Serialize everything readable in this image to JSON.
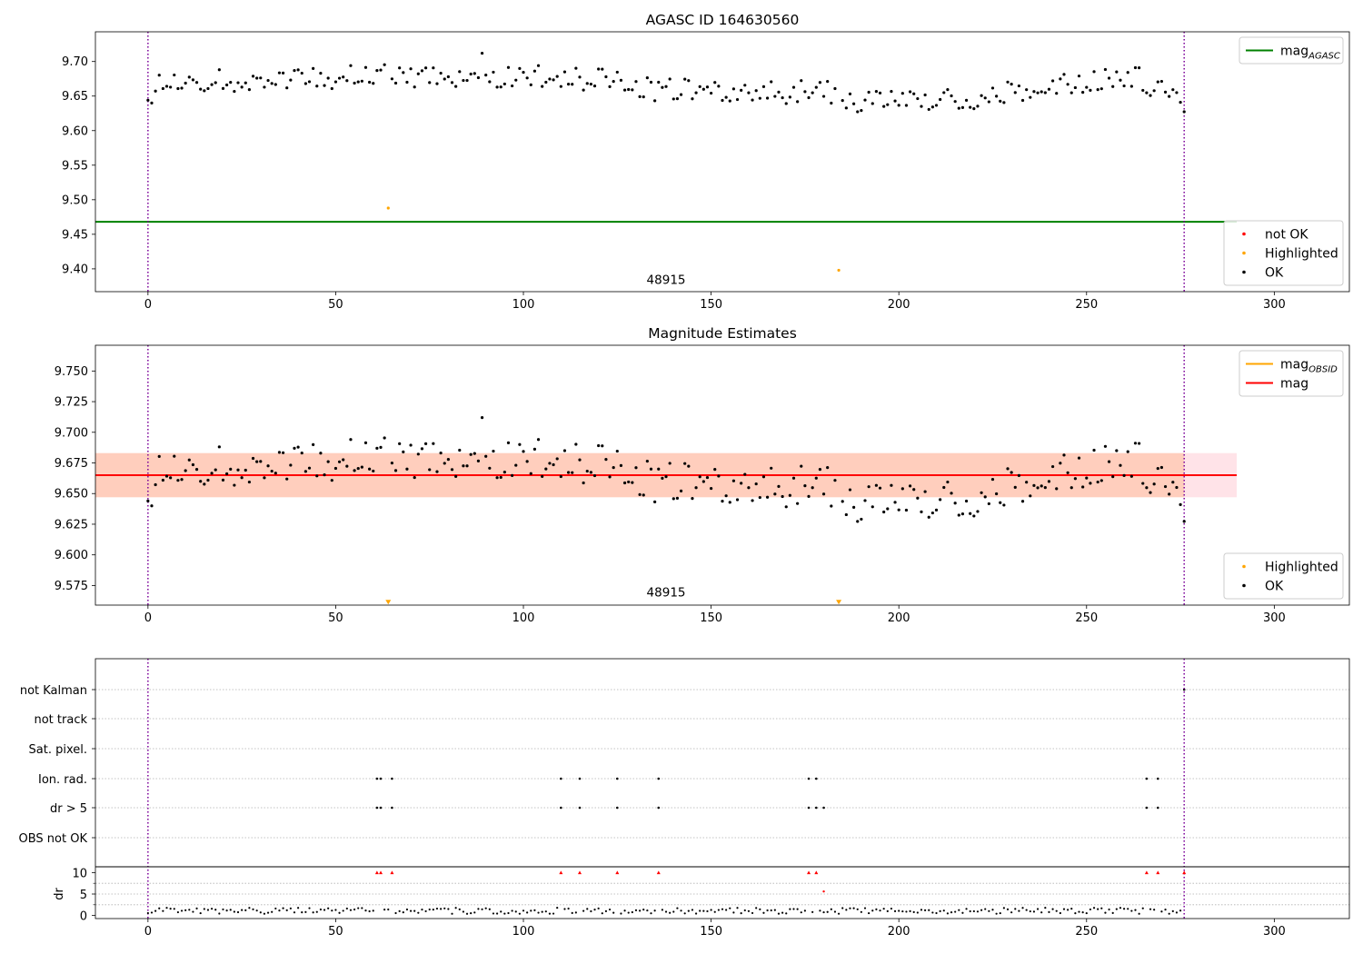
{
  "figure": {
    "background": "#ffffff"
  },
  "chart_data": [
    {
      "type": "scatter",
      "title": "AGASC ID 164630560",
      "xlim": [
        -14,
        320
      ],
      "ylim": [
        9.367,
        9.743
      ],
      "x_ticks": [
        0,
        50,
        100,
        150,
        200,
        250,
        300
      ],
      "y_ticks": [
        9.4,
        9.45,
        9.5,
        9.55,
        9.6,
        9.65,
        9.7
      ],
      "y_tick_decimals": 2,
      "vlines": [
        0,
        276
      ],
      "vline_color": "#7b0099",
      "annotation": {
        "text": "48915",
        "x": 138,
        "y": 9.378
      },
      "hlines": [
        {
          "name": "mag_AGASC",
          "y": 9.468,
          "x0": -14,
          "x1": 290,
          "color": "#008000"
        }
      ],
      "series": [
        {
          "name": "OK",
          "color": "#000000",
          "source": "ok_points"
        },
        {
          "name": "Highlighted",
          "color": "#ffa500",
          "points": [
            [
              64,
              9.488
            ],
            [
              184,
              9.398
            ]
          ]
        },
        {
          "name": "not OK",
          "color": "#ff0000",
          "points": []
        }
      ],
      "legends": [
        {
          "position": "top-right",
          "entries": [
            {
              "label": "mag",
              "sub": "AGASC",
              "kind": "line",
              "color": "#008000"
            }
          ]
        },
        {
          "position": "bottom-right",
          "entries": [
            {
              "label": "not OK",
              "kind": "dot",
              "color": "#ff0000"
            },
            {
              "label": "Highlighted",
              "kind": "dot",
              "color": "#ffa500"
            },
            {
              "label": "OK",
              "kind": "dot",
              "color": "#000000"
            }
          ]
        }
      ]
    },
    {
      "type": "scatter",
      "title": "Magnitude Estimates",
      "xlim": [
        -14,
        320
      ],
      "ylim": [
        9.559,
        9.771
      ],
      "x_ticks": [
        0,
        50,
        100,
        150,
        200,
        250,
        300
      ],
      "y_ticks": [
        9.575,
        9.6,
        9.625,
        9.65,
        9.675,
        9.7,
        9.725,
        9.75
      ],
      "y_tick_decimals": 3,
      "vlines": [
        0,
        276
      ],
      "vline_color": "#7b0099",
      "annotation": {
        "text": "48915",
        "x": 138,
        "y": 9.566
      },
      "bands": [
        {
          "y0": 9.647,
          "y1": 9.683,
          "x0": -14,
          "x1": 290,
          "color": "#ffc0cb",
          "opacity": 0.45
        },
        {
          "y0": 9.647,
          "y1": 9.683,
          "x0": -14,
          "x1": 276,
          "color": "#ffa56e",
          "opacity": 0.35
        }
      ],
      "hlines": [
        {
          "name": "mag_OBSID",
          "y": 9.665,
          "x0": -14,
          "x1": 276,
          "color": "#ffa500"
        },
        {
          "name": "mag",
          "y": 9.665,
          "x0": -14,
          "x1": 290,
          "color": "#ff0000"
        }
      ],
      "series": [
        {
          "name": "OK",
          "color": "#000000",
          "source": "ok_points"
        },
        {
          "name": "Highlighted",
          "color": "#ffa500",
          "marker": "triangle-down",
          "points": [
            [
              64,
              9.561
            ],
            [
              184,
              9.561
            ]
          ]
        }
      ],
      "legends": [
        {
          "position": "top-right",
          "entries": [
            {
              "label": "mag",
              "sub": "OBSID",
              "kind": "line",
              "color": "#ffa500"
            },
            {
              "label": "mag",
              "sub": "",
              "kind": "line",
              "color": "#ff0000"
            }
          ]
        },
        {
          "position": "bottom-right",
          "entries": [
            {
              "label": "Highlighted",
              "kind": "dot",
              "color": "#ffa500"
            },
            {
              "label": "OK",
              "kind": "dot",
              "color": "#000000"
            }
          ]
        }
      ]
    },
    {
      "type": "scatter",
      "xlim": [
        -14,
        320
      ],
      "x_ticks": [
        0,
        50,
        100,
        150,
        200,
        250,
        300
      ],
      "vlines": [
        0,
        276
      ],
      "vline_color": "#7b0099",
      "flag_rows": [
        "not Kalman",
        "not track",
        "Sat. pixel.",
        "Ion. rad.",
        "dr > 5",
        "OBS not OK"
      ],
      "flag_points": {
        "not Kalman": [
          276
        ],
        "not track": [],
        "Sat. pixel.": [],
        "Ion. rad.": [
          61,
          62,
          65,
          110,
          115,
          125,
          136,
          176,
          178,
          266,
          269
        ],
        "dr > 5": [
          61,
          62,
          65,
          110,
          115,
          125,
          136,
          176,
          178,
          180,
          266,
          269
        ],
        "OBS not OK": []
      },
      "dr_panel": {
        "ylabel": "dr",
        "ylim": [
          -0.5,
          10.5
        ],
        "y_ticks": [
          0,
          5,
          10
        ],
        "minor_y_ticks": [
          2.5,
          7.5
        ],
        "threshold": 5,
        "clip_value": 10,
        "red_points_x": [
          61,
          62,
          65,
          110,
          115,
          125,
          136,
          176,
          178,
          266,
          269,
          276
        ]
      }
    }
  ]
}
